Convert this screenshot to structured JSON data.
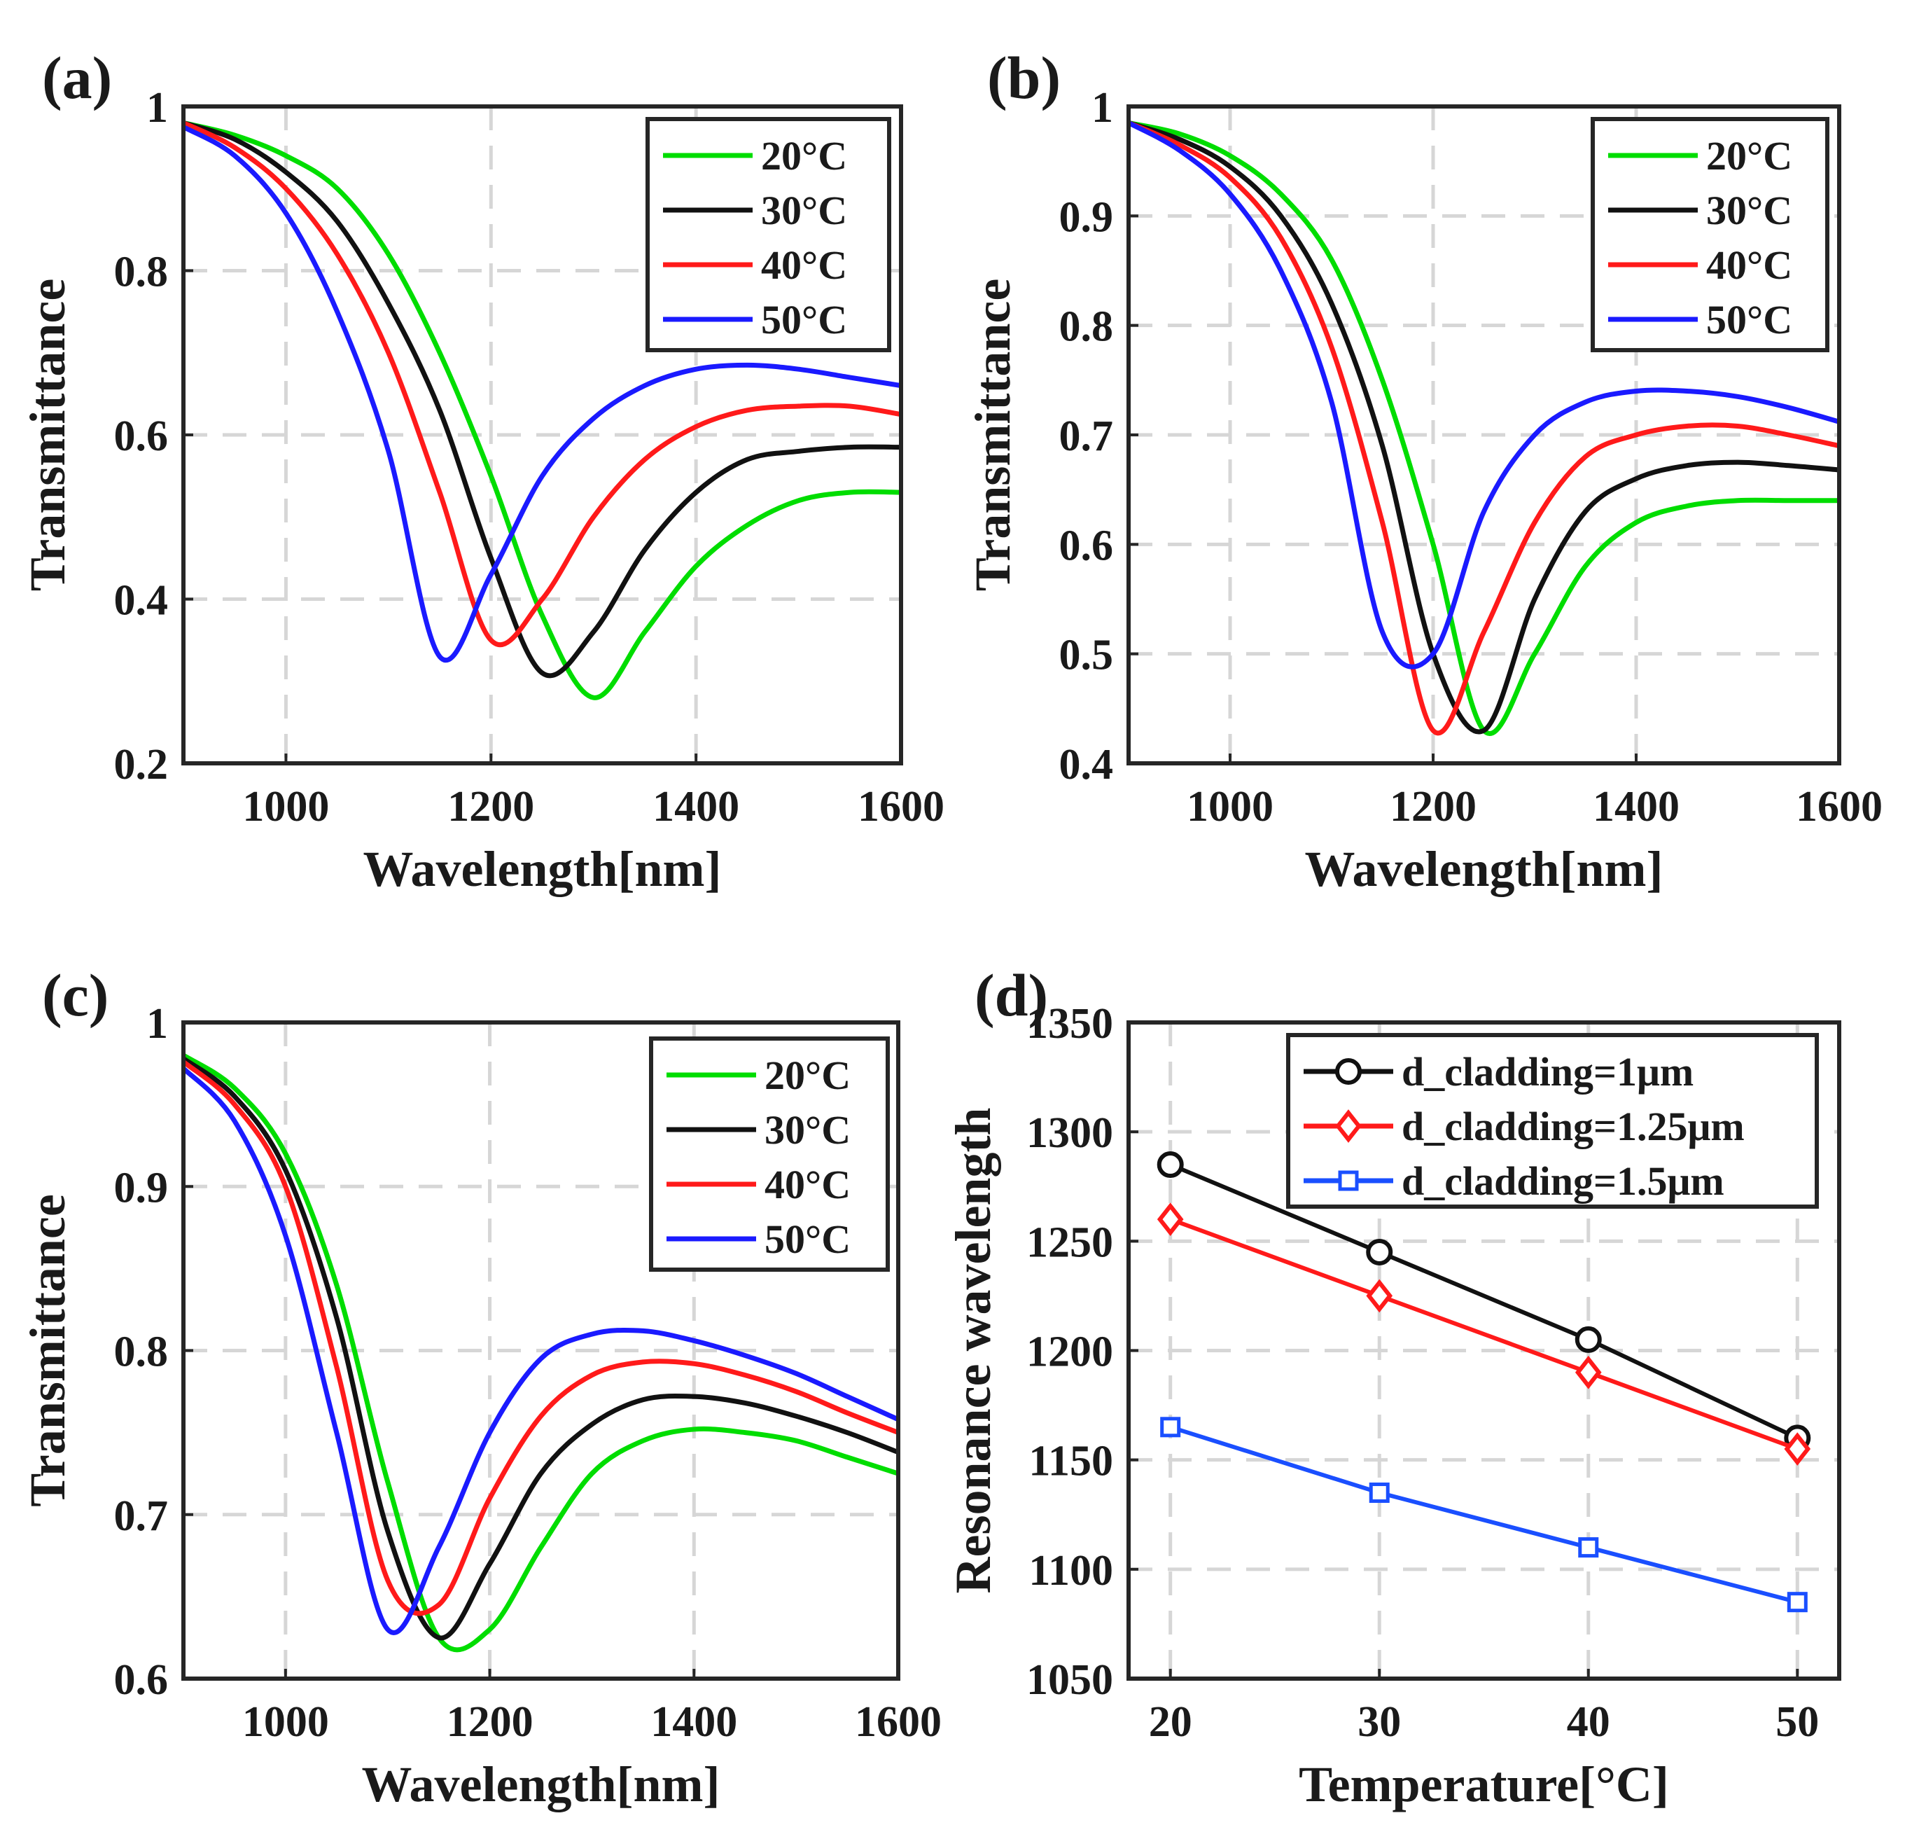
{
  "figure_labels": [
    "(a)",
    "(b)",
    "(c)",
    "(d)"
  ],
  "chart_data": [
    {
      "panel": "(a)",
      "type": "line",
      "xlabel": "Wavelength[nm]",
      "ylabel": "Transmittance",
      "xlim": [
        900,
        1600
      ],
      "ylim": [
        0.2,
        1
      ],
      "xticks": [
        1000,
        1200,
        1400,
        1600
      ],
      "yticks": [
        0.2,
        0.4,
        0.6,
        0.8,
        1
      ],
      "ytick_labels": [
        "0.2",
        "0.4",
        "0.6",
        "0.8",
        "1"
      ],
      "grid": true,
      "legend_position": "top-right",
      "x": [
        900,
        950,
        1000,
        1050,
        1100,
        1150,
        1200,
        1250,
        1300,
        1350,
        1400,
        1450,
        1500,
        1550,
        1600
      ],
      "series": [
        {
          "name": "20°C",
          "color": "#00dd00",
          "values": [
            0.98,
            0.965,
            0.94,
            0.9,
            0.82,
            0.7,
            0.55,
            0.38,
            0.28,
            0.36,
            0.44,
            0.49,
            0.52,
            0.53,
            0.53
          ]
        },
        {
          "name": "30°C",
          "color": "#111111",
          "values": [
            0.98,
            0.96,
            0.92,
            0.86,
            0.76,
            0.63,
            0.45,
            0.31,
            0.36,
            0.46,
            0.53,
            0.57,
            0.58,
            0.585,
            0.585
          ]
        },
        {
          "name": "40°C",
          "color": "#ff1a1a",
          "values": [
            0.98,
            0.95,
            0.9,
            0.82,
            0.7,
            0.53,
            0.35,
            0.4,
            0.5,
            0.57,
            0.61,
            0.63,
            0.635,
            0.635,
            0.625
          ]
        },
        {
          "name": "50°C",
          "color": "#1a1aff",
          "values": [
            0.975,
            0.94,
            0.87,
            0.75,
            0.58,
            0.33,
            0.43,
            0.55,
            0.62,
            0.66,
            0.68,
            0.685,
            0.68,
            0.67,
            0.66
          ]
        }
      ]
    },
    {
      "panel": "(b)",
      "type": "line",
      "xlabel": "Wavelength[nm]",
      "ylabel": "Transmittance",
      "xlim": [
        900,
        1600
      ],
      "ylim": [
        0.4,
        1
      ],
      "xticks": [
        1000,
        1200,
        1400,
        1600
      ],
      "yticks": [
        0.4,
        0.5,
        0.6,
        0.7,
        0.8,
        0.9,
        1
      ],
      "ytick_labels": [
        "0.4",
        "0.5",
        "0.6",
        "0.7",
        "0.8",
        "0.9",
        "1"
      ],
      "grid": true,
      "legend_position": "top-right",
      "x": [
        900,
        950,
        1000,
        1050,
        1100,
        1150,
        1200,
        1250,
        1300,
        1350,
        1400,
        1450,
        1500,
        1550,
        1600
      ],
      "series": [
        {
          "name": "20°C",
          "color": "#00dd00",
          "values": [
            0.985,
            0.975,
            0.955,
            0.92,
            0.86,
            0.75,
            0.6,
            0.43,
            0.5,
            0.58,
            0.62,
            0.635,
            0.64,
            0.64,
            0.64
          ]
        },
        {
          "name": "30°C",
          "color": "#111111",
          "values": [
            0.985,
            0.97,
            0.945,
            0.9,
            0.82,
            0.69,
            0.5,
            0.43,
            0.55,
            0.63,
            0.66,
            0.672,
            0.675,
            0.672,
            0.668
          ]
        },
        {
          "name": "40°C",
          "color": "#ff1a1a",
          "values": [
            0.985,
            0.965,
            0.935,
            0.88,
            0.78,
            0.62,
            0.43,
            0.52,
            0.62,
            0.68,
            0.7,
            0.708,
            0.708,
            0.7,
            0.69
          ]
        },
        {
          "name": "50°C",
          "color": "#1a1aff",
          "values": [
            0.985,
            0.96,
            0.92,
            0.85,
            0.73,
            0.52,
            0.5,
            0.63,
            0.7,
            0.73,
            0.74,
            0.74,
            0.735,
            0.725,
            0.712
          ]
        }
      ]
    },
    {
      "panel": "(c)",
      "type": "line",
      "xlabel": "Wavelength[nm]",
      "ylabel": "Transmittance",
      "xlim": [
        900,
        1600
      ],
      "ylim": [
        0.6,
        1
      ],
      "xticks": [
        1000,
        1200,
        1400,
        1600
      ],
      "yticks": [
        0.6,
        0.7,
        0.8,
        0.9,
        1
      ],
      "ytick_labels": [
        "0.6",
        "0.7",
        "0.8",
        "0.9",
        "1"
      ],
      "grid": true,
      "legend_position": "top-right",
      "x": [
        900,
        950,
        1000,
        1050,
        1100,
        1150,
        1200,
        1250,
        1300,
        1350,
        1400,
        1450,
        1500,
        1550,
        1600
      ],
      "series": [
        {
          "name": "20°C",
          "color": "#00dd00",
          "values": [
            0.98,
            0.96,
            0.92,
            0.84,
            0.72,
            0.625,
            0.63,
            0.68,
            0.725,
            0.745,
            0.752,
            0.75,
            0.745,
            0.735,
            0.725
          ]
        },
        {
          "name": "30°C",
          "color": "#111111",
          "values": [
            0.978,
            0.955,
            0.91,
            0.82,
            0.69,
            0.625,
            0.67,
            0.725,
            0.755,
            0.77,
            0.772,
            0.768,
            0.76,
            0.75,
            0.738
          ]
        },
        {
          "name": "40°C",
          "color": "#ff1a1a",
          "values": [
            0.976,
            0.95,
            0.9,
            0.79,
            0.66,
            0.645,
            0.71,
            0.76,
            0.785,
            0.793,
            0.792,
            0.785,
            0.775,
            0.762,
            0.75
          ]
        },
        {
          "name": "50°C",
          "color": "#1a1aff",
          "values": [
            0.972,
            0.94,
            0.87,
            0.75,
            0.63,
            0.68,
            0.75,
            0.795,
            0.81,
            0.812,
            0.806,
            0.797,
            0.786,
            0.772,
            0.758
          ]
        }
      ]
    },
    {
      "panel": "(d)",
      "type": "line",
      "xlabel": "Temperature[°C]",
      "ylabel": "Resonance wavelength",
      "xlim": [
        18,
        52
      ],
      "ylim": [
        1050,
        1350
      ],
      "xticks": [
        20,
        30,
        40,
        50
      ],
      "yticks": [
        1050,
        1100,
        1150,
        1200,
        1250,
        1300,
        1350
      ],
      "ytick_labels": [
        "1050",
        "1100",
        "1150",
        "1200",
        "1250",
        "1300",
        "1350"
      ],
      "grid": true,
      "legend_position": "top-right",
      "x": [
        20,
        30,
        40,
        50
      ],
      "series": [
        {
          "name": "d_cladding=1μm",
          "color": "#111111",
          "marker": "circle",
          "values": [
            1285,
            1245,
            1205,
            1160
          ]
        },
        {
          "name": "d_cladding=1.25μm",
          "color": "#ff1a1a",
          "marker": "diamond",
          "values": [
            1260,
            1225,
            1190,
            1155
          ]
        },
        {
          "name": "d_cladding=1.5μm",
          "color": "#1a4fff",
          "marker": "square",
          "values": [
            1165,
            1135,
            1110,
            1085
          ]
        }
      ]
    }
  ]
}
